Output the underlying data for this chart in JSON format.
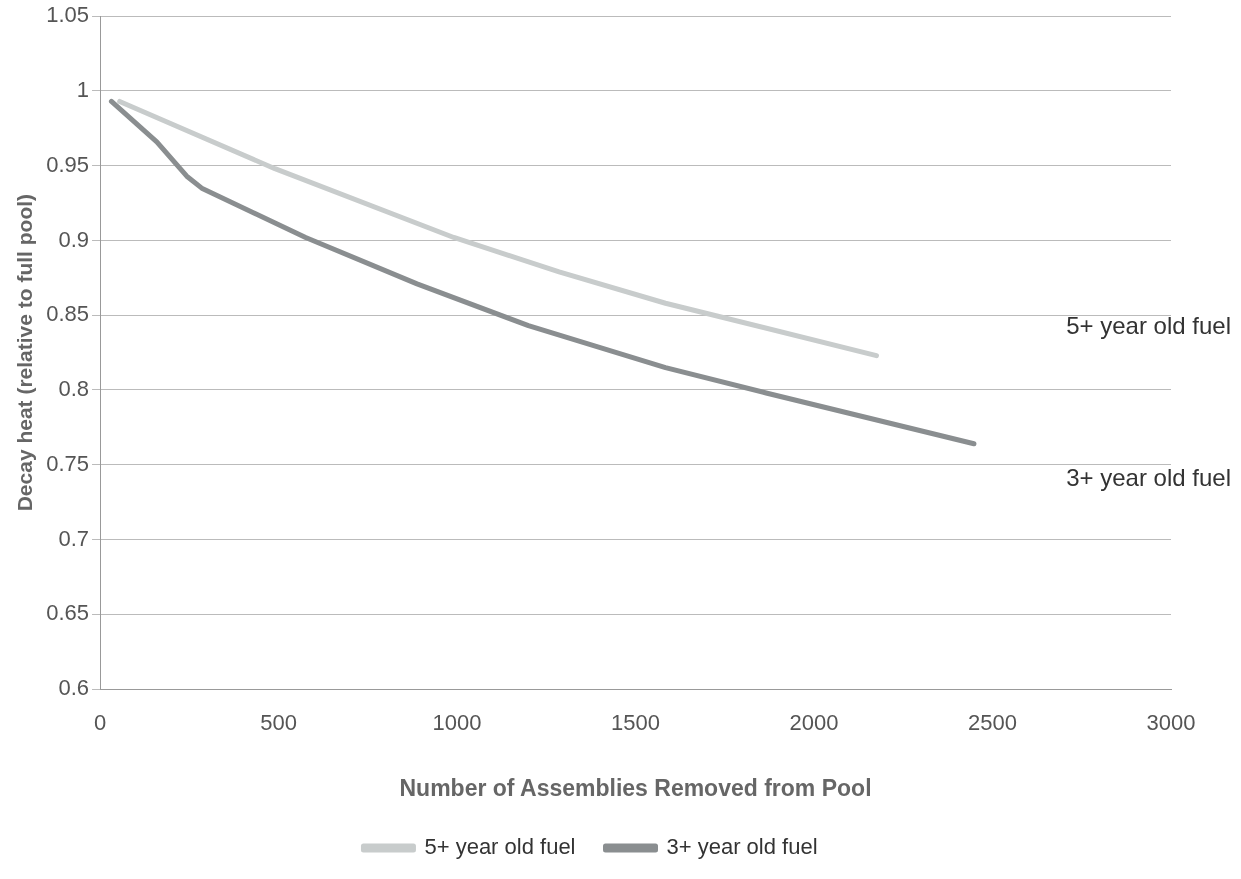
{
  "chart_data": {
    "type": "line",
    "xlabel": "Number of Assemblies Removed from Pool",
    "ylabel": "Decay heat (relative to full pool)",
    "xlim": [
      0,
      3000
    ],
    "xticks": [
      0,
      500,
      1000,
      1500,
      2000,
      2500,
      3000
    ],
    "ylim": [
      0.6,
      1.05
    ],
    "yticks": [
      0.6,
      0.65,
      0.7,
      0.75,
      0.8,
      0.85,
      0.9,
      0.95,
      1,
      1.05
    ],
    "grid": "y",
    "legend": "bottom",
    "marker": "none",
    "line_style": "solid",
    "series": [
      {
        "name": "5+ year old fuel",
        "color": "#c8cccc",
        "x": [
          55,
          490,
          991,
          1286,
          1584,
          2175
        ],
        "values": [
          0.993,
          0.948,
          0.902,
          0.879,
          0.858,
          0.823
        ]
      },
      {
        "name": "3+ year old fuel",
        "color": "#8a8e90",
        "x": [
          32,
          159,
          243,
          285,
          576,
          888,
          1200,
          1584,
          1866,
          2448
        ],
        "values": [
          0.993,
          0.966,
          0.943,
          0.935,
          0.902,
          0.871,
          0.843,
          0.815,
          0.798,
          0.764
        ]
      }
    ],
    "annotations": [
      "5+ year old fuel",
      "3+ year old fuel"
    ]
  }
}
